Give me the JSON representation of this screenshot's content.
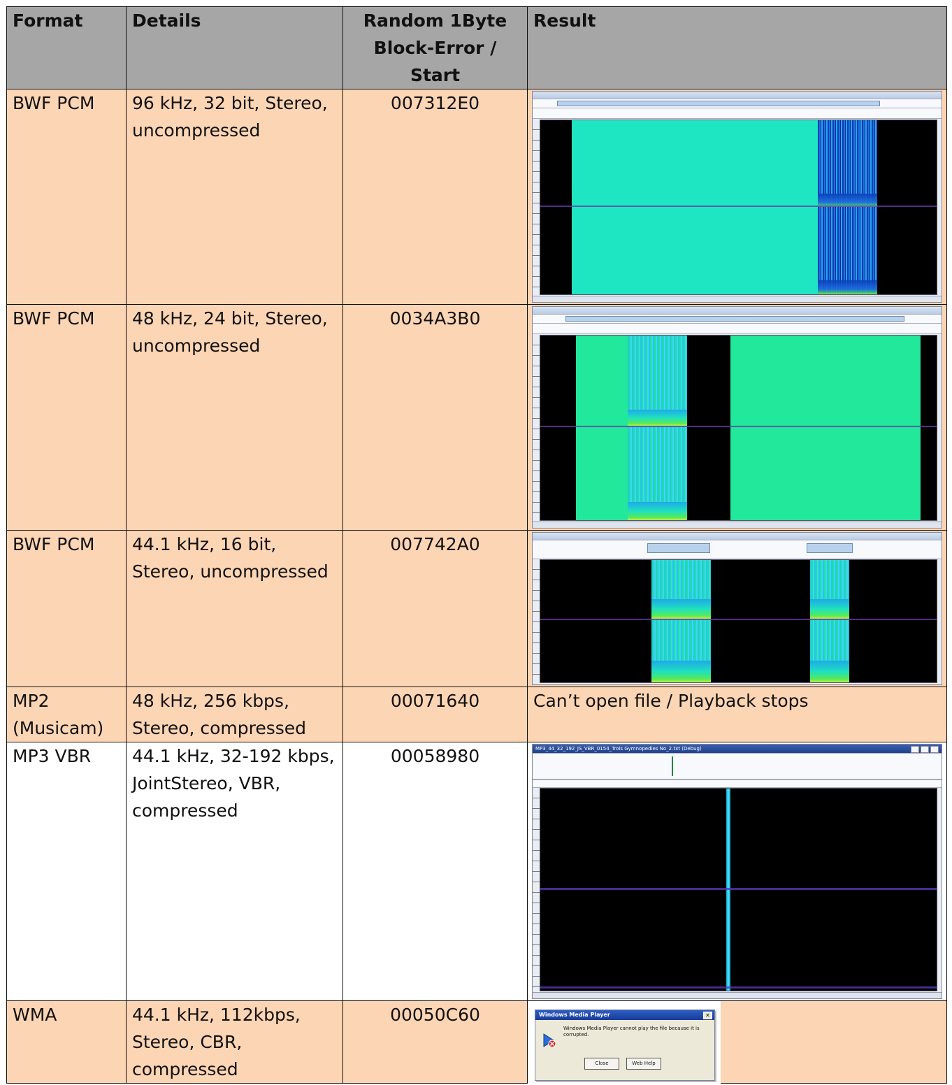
{
  "table": {
    "headers": {
      "format": "Format",
      "details": "Details",
      "error_line1": "Random 1Byte",
      "error_line2": "Block-Error / Start",
      "result": "Result"
    },
    "rows": [
      {
        "format": "BWF PCM",
        "details_lines": [
          "96 kHz, 32 bit, Stereo,",
          "uncompressed"
        ],
        "error_start": "007312E0"
      },
      {
        "format": "BWF PCM",
        "details_lines": [
          "48 kHz, 24 bit, Stereo,",
          "uncompressed"
        ],
        "error_start": "0034A3B0"
      },
      {
        "format": "BWF PCM",
        "details_lines": [
          "44.1 kHz, 16 bit,",
          "Stereo, uncompressed"
        ],
        "error_start": "007742A0"
      },
      {
        "format_lines": [
          "MP2",
          "(Musicam)"
        ],
        "details_lines": [
          "48 kHz, 256 kbps,",
          "Stereo, compressed"
        ],
        "error_start": "00071640",
        "result_text": "Can’t open file / Playback stops"
      },
      {
        "format": "MP3 VBR",
        "details_lines": [
          "44.1 kHz, 32-192 kbps,",
          "JointStereo, VBR,",
          "compressed"
        ],
        "error_start": "00058980"
      },
      {
        "format": "WMA",
        "details_lines": [
          "44.1 kHz, 112kbps,",
          "Stereo, CBR,",
          "compressed"
        ],
        "error_start": "00050C60"
      }
    ]
  },
  "screenshots": {
    "mp3_title": "MP3_44_32_192_JS_VBR_0154_Trois Gymnopedies No_2.txt (Debug)",
    "wmp_dialog": {
      "title": "Windows Media Player",
      "message": "Windows Media Player cannot play the file because it is corrupted.",
      "close_glyph": "✕",
      "buttons": [
        "Close",
        "Web Help"
      ]
    }
  },
  "colors": {
    "header_bg": "#a6a6a6",
    "orange_row_bg": "#fcd5b4",
    "white_row_bg": "#ffffff",
    "spectrogram_bg": "#000000"
  }
}
